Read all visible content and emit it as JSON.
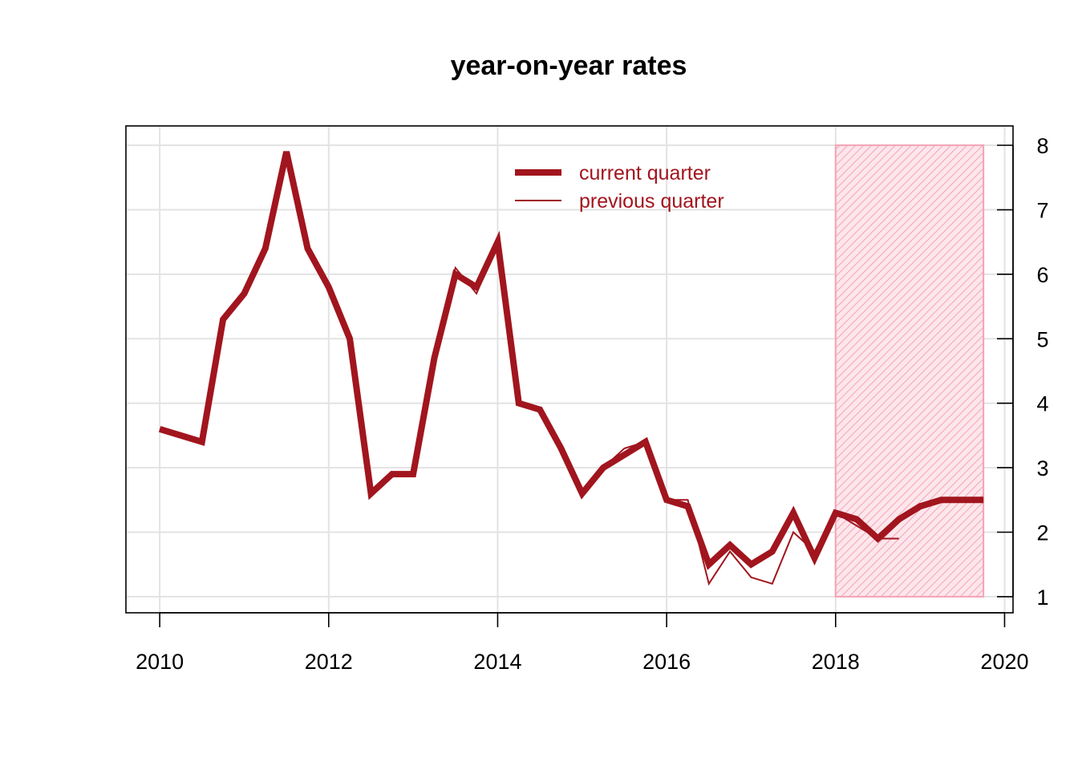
{
  "chart_data": {
    "type": "line",
    "title": "year-on-year rates",
    "xlabel": "",
    "ylabel": "",
    "xlim": [
      2009.6,
      2020.1
    ],
    "ylim": [
      0.75,
      8.3
    ],
    "x_ticks": [
      2010,
      2012,
      2014,
      2016,
      2018,
      2020
    ],
    "y_ticks": [
      1,
      2,
      3,
      4,
      5,
      6,
      7,
      8
    ],
    "y_axis_side": "right",
    "grid": true,
    "legend_position": "top-center",
    "colors": {
      "line": "#a1151e",
      "forecast_fill": "#f7b6c4",
      "forecast_border": "#f4a3b5"
    },
    "forecast_region": {
      "x_start": 2018.0,
      "x_end": 2019.75,
      "y_start": 1,
      "y_end": 8
    },
    "series": [
      {
        "name": "current quarter",
        "x": [
          2010.0,
          2010.25,
          2010.5,
          2010.75,
          2011.0,
          2011.25,
          2011.5,
          2011.75,
          2012.0,
          2012.25,
          2012.5,
          2012.75,
          2013.0,
          2013.25,
          2013.5,
          2013.75,
          2014.0,
          2014.25,
          2014.5,
          2014.75,
          2015.0,
          2015.25,
          2015.5,
          2015.75,
          2016.0,
          2016.25,
          2016.5,
          2016.75,
          2017.0,
          2017.25,
          2017.5,
          2017.75,
          2018.0,
          2018.25,
          2018.5,
          2018.75,
          2019.0,
          2019.25,
          2019.5,
          2019.75
        ],
        "values": [
          3.6,
          3.5,
          3.4,
          5.3,
          5.7,
          6.4,
          7.9,
          6.4,
          5.8,
          5.0,
          2.6,
          2.9,
          2.9,
          4.7,
          6.0,
          5.8,
          6.5,
          4.0,
          3.9,
          3.3,
          2.6,
          3.0,
          3.2,
          3.4,
          2.5,
          2.4,
          1.5,
          1.8,
          1.5,
          1.7,
          2.3,
          1.6,
          2.3,
          2.2,
          1.9,
          2.2,
          2.4,
          2.5,
          2.5,
          2.5
        ]
      },
      {
        "name": "previous quarter",
        "x": [
          2010.0,
          2010.25,
          2010.5,
          2010.75,
          2011.0,
          2011.25,
          2011.5,
          2011.75,
          2012.0,
          2012.25,
          2012.5,
          2012.75,
          2013.0,
          2013.25,
          2013.5,
          2013.75,
          2014.0,
          2014.25,
          2014.5,
          2014.75,
          2015.0,
          2015.25,
          2015.5,
          2015.75,
          2016.0,
          2016.25,
          2016.5,
          2016.75,
          2017.0,
          2017.25,
          2017.5,
          2017.75,
          2018.0,
          2018.25,
          2018.5,
          2018.75
        ],
        "values": [
          3.6,
          3.5,
          3.4,
          5.3,
          5.7,
          6.4,
          7.9,
          6.4,
          5.8,
          5.0,
          2.6,
          2.9,
          2.9,
          4.7,
          6.1,
          5.7,
          6.5,
          4.0,
          3.9,
          3.3,
          2.6,
          3.0,
          3.3,
          3.4,
          2.5,
          2.5,
          1.2,
          1.7,
          1.3,
          1.2,
          2.0,
          1.7,
          2.3,
          2.1,
          1.9,
          1.9
        ]
      }
    ]
  }
}
